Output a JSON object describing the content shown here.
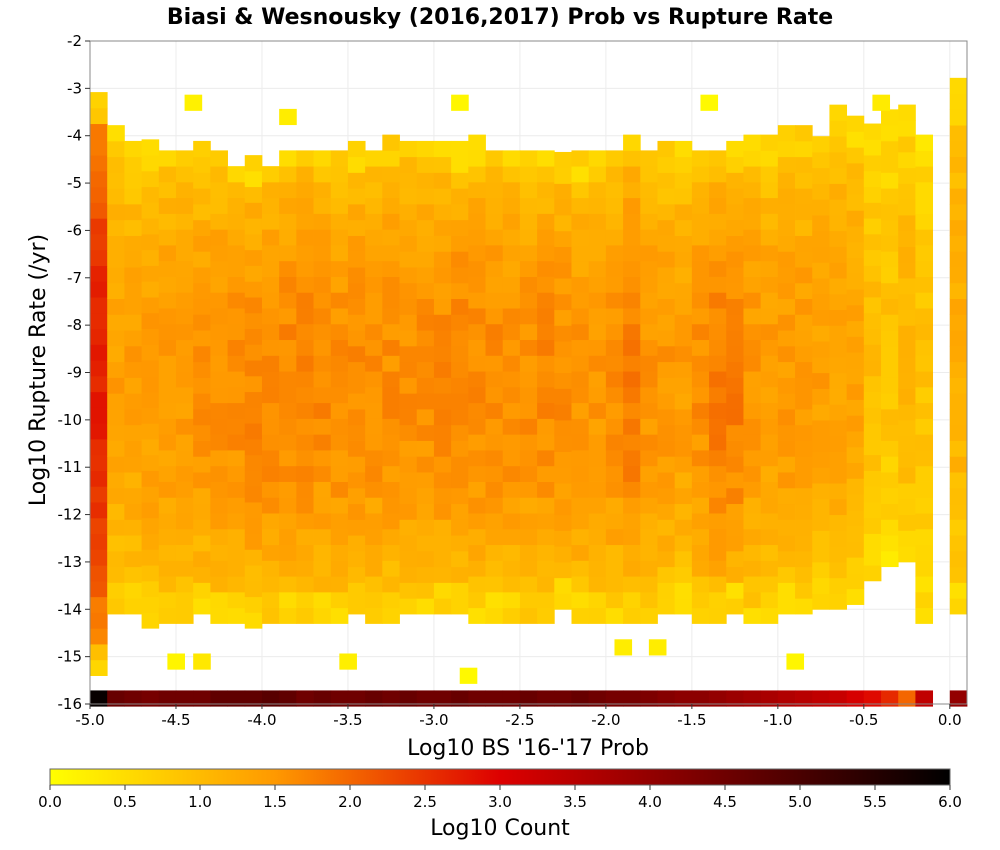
{
  "chart_data": {
    "type": "heatmap",
    "title": "Biasi & Wesnousky (2016,2017) Prob vs Rupture Rate",
    "xlabel": "Log10 BS '16-'17 Prob",
    "ylabel": "Log10 Rupture Rate (/yr)",
    "xlim": [
      -5.0,
      0.1
    ],
    "ylim": [
      -16,
      -2
    ],
    "x_ticks": [
      "-5.0",
      "-4.5",
      "-4.0",
      "-3.5",
      "-3.0",
      "-2.5",
      "-2.0",
      "-1.5",
      "-1.0",
      "-0.5",
      "0.0"
    ],
    "y_ticks": [
      "-2",
      "-3",
      "-4",
      "-5",
      "-6",
      "-7",
      "-8",
      "-9",
      "-10",
      "-11",
      "-12",
      "-13",
      "-14",
      "-15",
      "-16"
    ],
    "bin_width_x": 0.1,
    "bin_height_y": 0.333,
    "grid": true,
    "colorbar": {
      "label": "Log10 Count",
      "min": 0.0,
      "max": 6.0,
      "ticks": [
        "0.0",
        "0.5",
        "1.0",
        "1.5",
        "2.0",
        "2.5",
        "3.0",
        "3.5",
        "4.0",
        "4.5",
        "5.0",
        "5.5",
        "6.0"
      ],
      "colors": [
        "#ffff00",
        "#ff9900",
        "#dd0000",
        "#000000"
      ],
      "placement": "bottom"
    },
    "density_profile": {
      "x_centers": [
        -4.95,
        -4.85,
        -4.75,
        -4.65,
        -4.55,
        -4.45,
        -4.35,
        -4.25,
        -4.15,
        -4.05,
        -3.95,
        -3.85,
        -3.75,
        -3.65,
        -3.55,
        -3.45,
        -3.35,
        -3.25,
        -3.15,
        -3.05,
        -2.95,
        -2.85,
        -2.75,
        -2.65,
        -2.55,
        -2.45,
        -2.35,
        -2.25,
        -2.15,
        -2.05,
        -1.95,
        -1.85,
        -1.75,
        -1.65,
        -1.55,
        -1.45,
        -1.35,
        -1.25,
        -1.15,
        -1.05,
        -0.95,
        -0.85,
        -0.75,
        -0.65,
        -0.55,
        -0.45,
        -0.35,
        -0.25,
        -0.15,
        -0.05,
        0.05
      ],
      "peak_log10_count": [
        2.7,
        1.4,
        1.4,
        1.45,
        1.5,
        1.5,
        1.55,
        1.6,
        1.6,
        1.65,
        1.7,
        1.7,
        1.7,
        1.65,
        1.65,
        1.65,
        1.6,
        1.6,
        1.6,
        1.6,
        1.65,
        1.7,
        1.65,
        1.65,
        1.6,
        1.6,
        1.65,
        1.6,
        1.55,
        1.5,
        1.6,
        1.8,
        1.55,
        1.5,
        1.45,
        1.6,
        1.8,
        1.8,
        1.5,
        1.45,
        1.5,
        1.45,
        1.4,
        1.4,
        1.35,
        1.0,
        0.9,
        1.1,
        0.9,
        0.0,
        1.2
      ],
      "rate_top": [
        -3.0,
        -3.9,
        -4.2,
        -4.2,
        -4.2,
        -4.2,
        -4.2,
        -4.2,
        -4.5,
        -4.5,
        -4.5,
        -4.3,
        -4.2,
        -4.2,
        -4.3,
        -4.2,
        -4.2,
        -4.0,
        -4.0,
        -4.0,
        -4.0,
        -4.2,
        -4.0,
        -4.2,
        -4.2,
        -4.2,
        -4.2,
        -4.3,
        -4.3,
        -4.3,
        -4.2,
        -4.0,
        -4.2,
        -4.2,
        -4.2,
        -4.2,
        -4.2,
        -4.2,
        -4.0,
        -4.0,
        -3.9,
        -3.9,
        -3.9,
        -3.5,
        -3.5,
        -3.8,
        -3.5,
        -3.5,
        -3.9,
        -16.0,
        -2.7
      ],
      "rate_bottom": [
        -15.4,
        -14.1,
        -14.1,
        -14.4,
        -14.3,
        -14.3,
        -14.1,
        -14.3,
        -14.3,
        -14.4,
        -14.3,
        -14.3,
        -14.3,
        -14.3,
        -14.3,
        -14.1,
        -14.3,
        -14.3,
        -14.1,
        -14.1,
        -14.1,
        -14.1,
        -14.3,
        -14.3,
        -14.3,
        -14.3,
        -14.3,
        -14.0,
        -14.3,
        -14.3,
        -14.3,
        -14.3,
        -14.3,
        -14.1,
        -14.1,
        -14.3,
        -14.3,
        -14.1,
        -14.3,
        -14.3,
        -14.1,
        -14.1,
        -14.0,
        -14.0,
        -13.9,
        -13.4,
        -13.1,
        -13.0,
        -14.3,
        -16.0,
        -14.1
      ],
      "stray_high": [
        [
          -4.4,
          -3.3
        ],
        [
          -3.85,
          -3.6
        ],
        [
          -2.85,
          -3.3
        ],
        [
          -1.4,
          -3.3
        ],
        [
          -0.4,
          -3.3
        ]
      ],
      "stray_low": [
        [
          -4.5,
          -15.1
        ],
        [
          -4.35,
          -15.1
        ],
        [
          -3.5,
          -15.1
        ],
        [
          -2.8,
          -15.4
        ],
        [
          -1.9,
          -14.8
        ],
        [
          -1.7,
          -14.8
        ],
        [
          -0.9,
          -15.1
        ]
      ],
      "floor_row_rate": -16.0,
      "floor_row_log10_count": [
        5.9,
        4.6,
        4.5,
        4.4,
        4.5,
        4.5,
        4.5,
        4.7,
        4.7,
        4.7,
        4.8,
        4.7,
        4.5,
        4.6,
        4.5,
        4.5,
        4.6,
        4.5,
        4.6,
        4.5,
        4.5,
        4.6,
        4.5,
        4.5,
        4.5,
        4.6,
        4.5,
        4.5,
        4.6,
        4.5,
        4.4,
        4.4,
        4.3,
        4.2,
        4.1,
        4.1,
        4.0,
        3.9,
        3.8,
        3.7,
        3.6,
        3.5,
        3.4,
        3.3,
        3.1,
        2.9,
        2.6,
        2.0,
        3.4,
        0.0,
        4.0
      ]
    }
  }
}
